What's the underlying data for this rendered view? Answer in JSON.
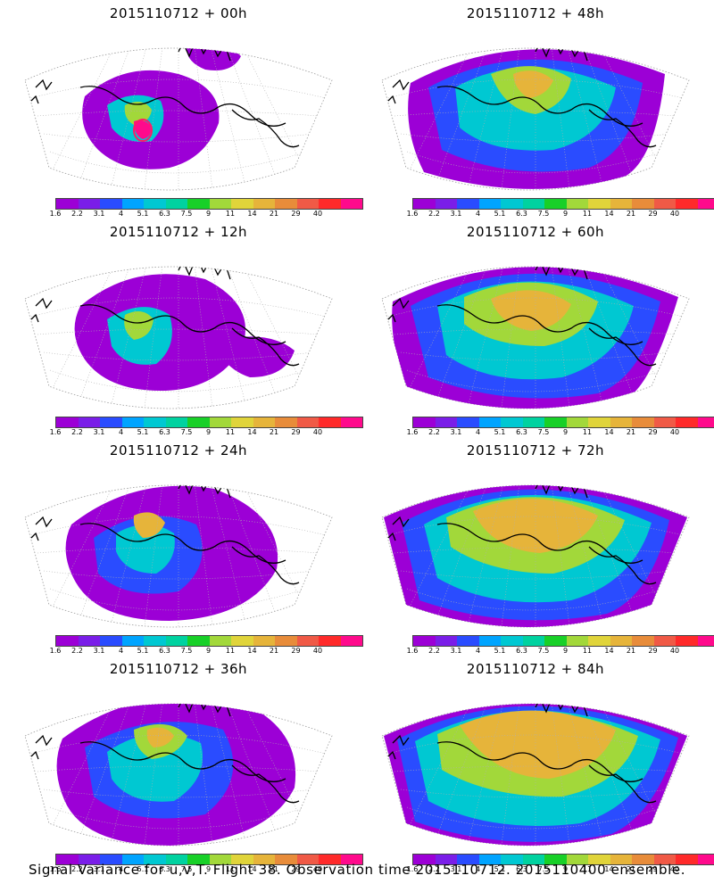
{
  "caption": "Signal Variance for u,v,T. Flight 38. Observation time 2015110712. 2015110400 ensemble.",
  "colorbar": {
    "colors": [
      "#9c00d6",
      "#7a1ee8",
      "#2a4cff",
      "#00a4ff",
      "#00c8d2",
      "#00d2a0",
      "#18d028",
      "#a2d83a",
      "#e0d43a",
      "#e6b43a",
      "#e88c3a",
      "#f05a46",
      "#ff2a2a",
      "#ff0a8c"
    ],
    "labels": [
      "1.6",
      "2.2",
      "3.1",
      "4",
      "5.1",
      "6.3",
      "7.5",
      "9",
      "11",
      "14",
      "21",
      "29",
      "40"
    ]
  },
  "panels": [
    {
      "title": "2015110712 + 00h",
      "level": 0
    },
    {
      "title": "2015110712 + 48h",
      "level": 4
    },
    {
      "title": "2015110712 + 12h",
      "level": 1
    },
    {
      "title": "2015110712 + 60h",
      "level": 5
    },
    {
      "title": "2015110712 + 24h",
      "level": 2
    },
    {
      "title": "2015110712 + 72h",
      "level": 6
    },
    {
      "title": "2015110712 + 36h",
      "level": 3
    },
    {
      "title": "2015110712 + 84h",
      "level": 7
    }
  ]
}
